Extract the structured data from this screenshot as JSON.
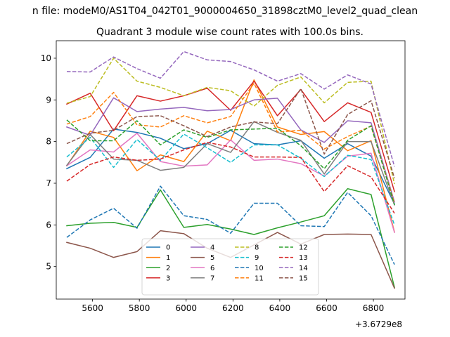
{
  "chart_data": {
    "type": "line",
    "suptitle": "n file: modeM0/AS1T04_042T01_9000004650_31898cztM0_level2_quad_clean",
    "title": "Quadrant 3 module wise count rates with 100.0s bins.",
    "xlabel": "",
    "ylabel": "",
    "x_offset_label": "+3.6729e8",
    "xlim": [
      5445,
      6935
    ],
    "ylim": [
      4.22,
      10.42
    ],
    "x_ticks": [
      5600,
      5800,
      6000,
      6200,
      6400,
      6600,
      6800
    ],
    "x_tick_labels": [
      "5600",
      "5800",
      "6000",
      "6200",
      "6400",
      "6600",
      "6800"
    ],
    "y_ticks": [
      5,
      6,
      7,
      8,
      9,
      10
    ],
    "y_tick_labels": [
      "5",
      "6",
      "7",
      "8",
      "9",
      "10"
    ],
    "legend_loc": "lower center",
    "x": [
      5490,
      5590,
      5690,
      5790,
      5890,
      5990,
      6090,
      6190,
      6290,
      6390,
      6490,
      6590,
      6690,
      6790,
      6890
    ],
    "series": [
      {
        "name": "0",
        "color": "#1f77b4",
        "dash": "solid",
        "values": [
          7.35,
          7.62,
          8.3,
          8.22,
          8.08,
          7.83,
          7.95,
          8.27,
          7.95,
          7.92,
          8.02,
          7.6,
          7.95,
          7.65,
          6.5
        ]
      },
      {
        "name": "1",
        "color": "#ff7f0e",
        "dash": "solid",
        "values": [
          7.42,
          8.25,
          8.1,
          7.3,
          7.68,
          7.52,
          8.25,
          8.02,
          9.48,
          8.35,
          8.17,
          8.24,
          7.78,
          8.02,
          5.83
        ]
      },
      {
        "name": "2",
        "color": "#2ca02c",
        "dash": "solid",
        "values": [
          5.98,
          6.04,
          6.06,
          5.94,
          6.84,
          5.94,
          6.01,
          5.9,
          5.77,
          5.93,
          6.07,
          6.22,
          6.87,
          6.73,
          4.5
        ]
      },
      {
        "name": "3",
        "color": "#d62728",
        "dash": "solid",
        "values": [
          8.9,
          9.16,
          8.26,
          9.1,
          8.97,
          9.1,
          9.28,
          8.75,
          9.45,
          8.62,
          9.25,
          8.48,
          8.93,
          8.7,
          6.8
        ]
      },
      {
        "name": "4",
        "color": "#9467bd",
        "dash": "solid",
        "values": [
          8.35,
          8.15,
          9.05,
          8.72,
          8.78,
          8.82,
          8.74,
          8.77,
          9.0,
          9.04,
          8.28,
          7.98,
          8.5,
          8.45,
          6.55
        ]
      },
      {
        "name": "5",
        "color": "#8c564b",
        "dash": "solid",
        "values": [
          5.58,
          5.44,
          5.22,
          5.36,
          5.86,
          5.79,
          5.44,
          5.22,
          5.52,
          5.82,
          5.54,
          5.77,
          5.78,
          5.77,
          4.48
        ]
      },
      {
        "name": "6",
        "color": "#e377c2",
        "dash": "solid",
        "values": [
          7.42,
          7.8,
          7.75,
          8.2,
          7.52,
          7.41,
          7.44,
          8.04,
          7.55,
          7.58,
          7.47,
          7.17,
          7.65,
          7.72,
          5.82
        ]
      },
      {
        "name": "7",
        "color": "#7f7f7f",
        "dash": "solid",
        "values": [
          7.43,
          8.17,
          7.58,
          7.55,
          7.31,
          7.38,
          7.95,
          7.74,
          8.48,
          8.22,
          8.03,
          7.22,
          8.0,
          8.0,
          6.48
        ]
      },
      {
        "name": "8",
        "color": "#bcbd22",
        "dash": "dashed",
        "values": [
          8.92,
          9.08,
          10.0,
          9.45,
          9.3,
          9.1,
          9.3,
          9.22,
          8.85,
          9.35,
          9.55,
          8.93,
          9.42,
          9.45,
          6.98
        ]
      },
      {
        "name": "9",
        "color": "#17becf",
        "dash": "dashed",
        "values": [
          7.63,
          8.1,
          7.38,
          8.05,
          7.55,
          8.18,
          7.85,
          7.5,
          7.92,
          7.92,
          7.6,
          7.16,
          7.67,
          7.57,
          6.0
        ]
      },
      {
        "name": "10",
        "color": "#1f77b4",
        "dash": "dashed",
        "values": [
          5.7,
          6.12,
          6.4,
          5.92,
          6.93,
          6.22,
          6.13,
          5.8,
          6.52,
          6.52,
          5.98,
          5.96,
          6.78,
          6.22,
          5.05
        ]
      },
      {
        "name": "11",
        "color": "#ff7f0e",
        "dash": "dashed",
        "values": [
          8.42,
          8.6,
          9.18,
          8.4,
          8.35,
          8.62,
          8.45,
          8.6,
          9.4,
          8.23,
          8.27,
          7.82,
          8.12,
          8.37,
          6.52
        ]
      },
      {
        "name": "12",
        "color": "#2ca02c",
        "dash": "dashed",
        "values": [
          8.52,
          8.02,
          8.02,
          8.5,
          7.92,
          8.28,
          8.1,
          8.28,
          8.3,
          8.32,
          7.9,
          7.35,
          8.03,
          8.38,
          6.48
        ]
      },
      {
        "name": "13",
        "color": "#d62728",
        "dash": "dashed",
        "values": [
          7.05,
          7.45,
          7.63,
          7.55,
          7.58,
          7.8,
          7.98,
          7.87,
          7.63,
          7.63,
          7.62,
          6.8,
          7.42,
          7.15,
          6.28
        ]
      },
      {
        "name": "14",
        "color": "#9467bd",
        "dash": "dashed",
        "values": [
          9.68,
          9.67,
          10.03,
          9.75,
          9.52,
          10.16,
          9.96,
          9.92,
          9.72,
          9.45,
          9.63,
          9.26,
          9.6,
          9.38,
          7.4
        ]
      },
      {
        "name": "15",
        "color": "#8c564b",
        "dash": "dashed",
        "values": [
          7.95,
          8.2,
          8.27,
          8.6,
          8.62,
          8.38,
          8.12,
          8.35,
          8.47,
          8.43,
          9.27,
          7.7,
          8.65,
          8.98,
          7.12
        ]
      }
    ]
  }
}
